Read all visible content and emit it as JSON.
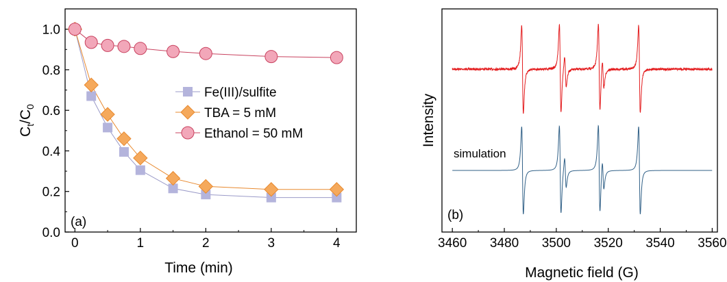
{
  "chart_data": [
    {
      "type": "line",
      "panel_label": "(a)",
      "xlabel": "Time (min)",
      "ylabel_main": "C",
      "ylabel_sub1": "t",
      "ylabel_mid": "/C",
      "ylabel_sub2": "0",
      "xlim": [
        -0.15,
        4.3
      ],
      "ylim": [
        0.0,
        1.1
      ],
      "xticks": [
        0,
        1,
        2,
        3,
        4
      ],
      "xtick_labels": [
        "0",
        "1",
        "2",
        "3",
        "4"
      ],
      "yticks": [
        0.0,
        0.2,
        0.4,
        0.6,
        0.8,
        1.0
      ],
      "ytick_labels": [
        "0.0",
        "0.2",
        "0.4",
        "0.6",
        "0.8",
        "1.0"
      ],
      "legend_position": "center-right",
      "grid": false,
      "series": [
        {
          "name": "Fe(III)/sulfite",
          "marker": "square",
          "color": "#b4b4dc",
          "stroke": "#9a9ac8",
          "x": [
            0,
            0.25,
            0.5,
            0.75,
            1,
            1.5,
            2,
            3,
            4
          ],
          "y": [
            1.0,
            0.67,
            0.515,
            0.395,
            0.305,
            0.215,
            0.185,
            0.17,
            0.17
          ]
        },
        {
          "name": "TBA = 5 mM",
          "marker": "diamond",
          "color": "#f5a95c",
          "stroke": "#e8892e",
          "x": [
            0,
            0.25,
            0.5,
            0.75,
            1,
            1.5,
            2,
            3,
            4
          ],
          "y": [
            1.0,
            0.725,
            0.58,
            0.46,
            0.365,
            0.265,
            0.225,
            0.21,
            0.21
          ]
        },
        {
          "name": "Ethanol = 50 mM",
          "marker": "circle",
          "color": "#f2a7b9",
          "stroke": "#c8415e",
          "x": [
            0,
            0.25,
            0.5,
            0.75,
            1,
            1.5,
            2,
            3,
            4
          ],
          "y": [
            1.0,
            0.935,
            0.92,
            0.915,
            0.905,
            0.89,
            0.88,
            0.865,
            0.86
          ]
        }
      ]
    },
    {
      "type": "line",
      "panel_label": "(b)",
      "xlabel": "Magnetic field (G)",
      "ylabel": "Intensity",
      "xlim": [
        3456,
        3562
      ],
      "xticks": [
        3460,
        3480,
        3500,
        3520,
        3540,
        3560
      ],
      "xtick_labels": [
        "3460",
        "3480",
        "3500",
        "3520",
        "3540",
        "3560"
      ],
      "annotation": "simulation",
      "y_ticks_shown": false,
      "grid": false,
      "series": [
        {
          "role": "experimental spectrum",
          "color": "#e31a1c",
          "x_range": [
            3460,
            3560
          ],
          "line_centers": [
            3487,
            3501.5,
            3503.5,
            3516.5,
            3518,
            3532
          ],
          "line_relative_amplitudes": [
            1.0,
            1.0,
            0.35,
            1.0,
            0.35,
            1.0
          ]
        },
        {
          "role": "simulation",
          "color": "#2f5f86",
          "x_range": [
            3460,
            3560
          ],
          "line_centers": [
            3487,
            3501.5,
            3503.5,
            3516.5,
            3518,
            3532
          ],
          "line_relative_amplitudes": [
            1.0,
            1.0,
            0.35,
            1.0,
            0.35,
            1.0
          ]
        }
      ]
    }
  ]
}
